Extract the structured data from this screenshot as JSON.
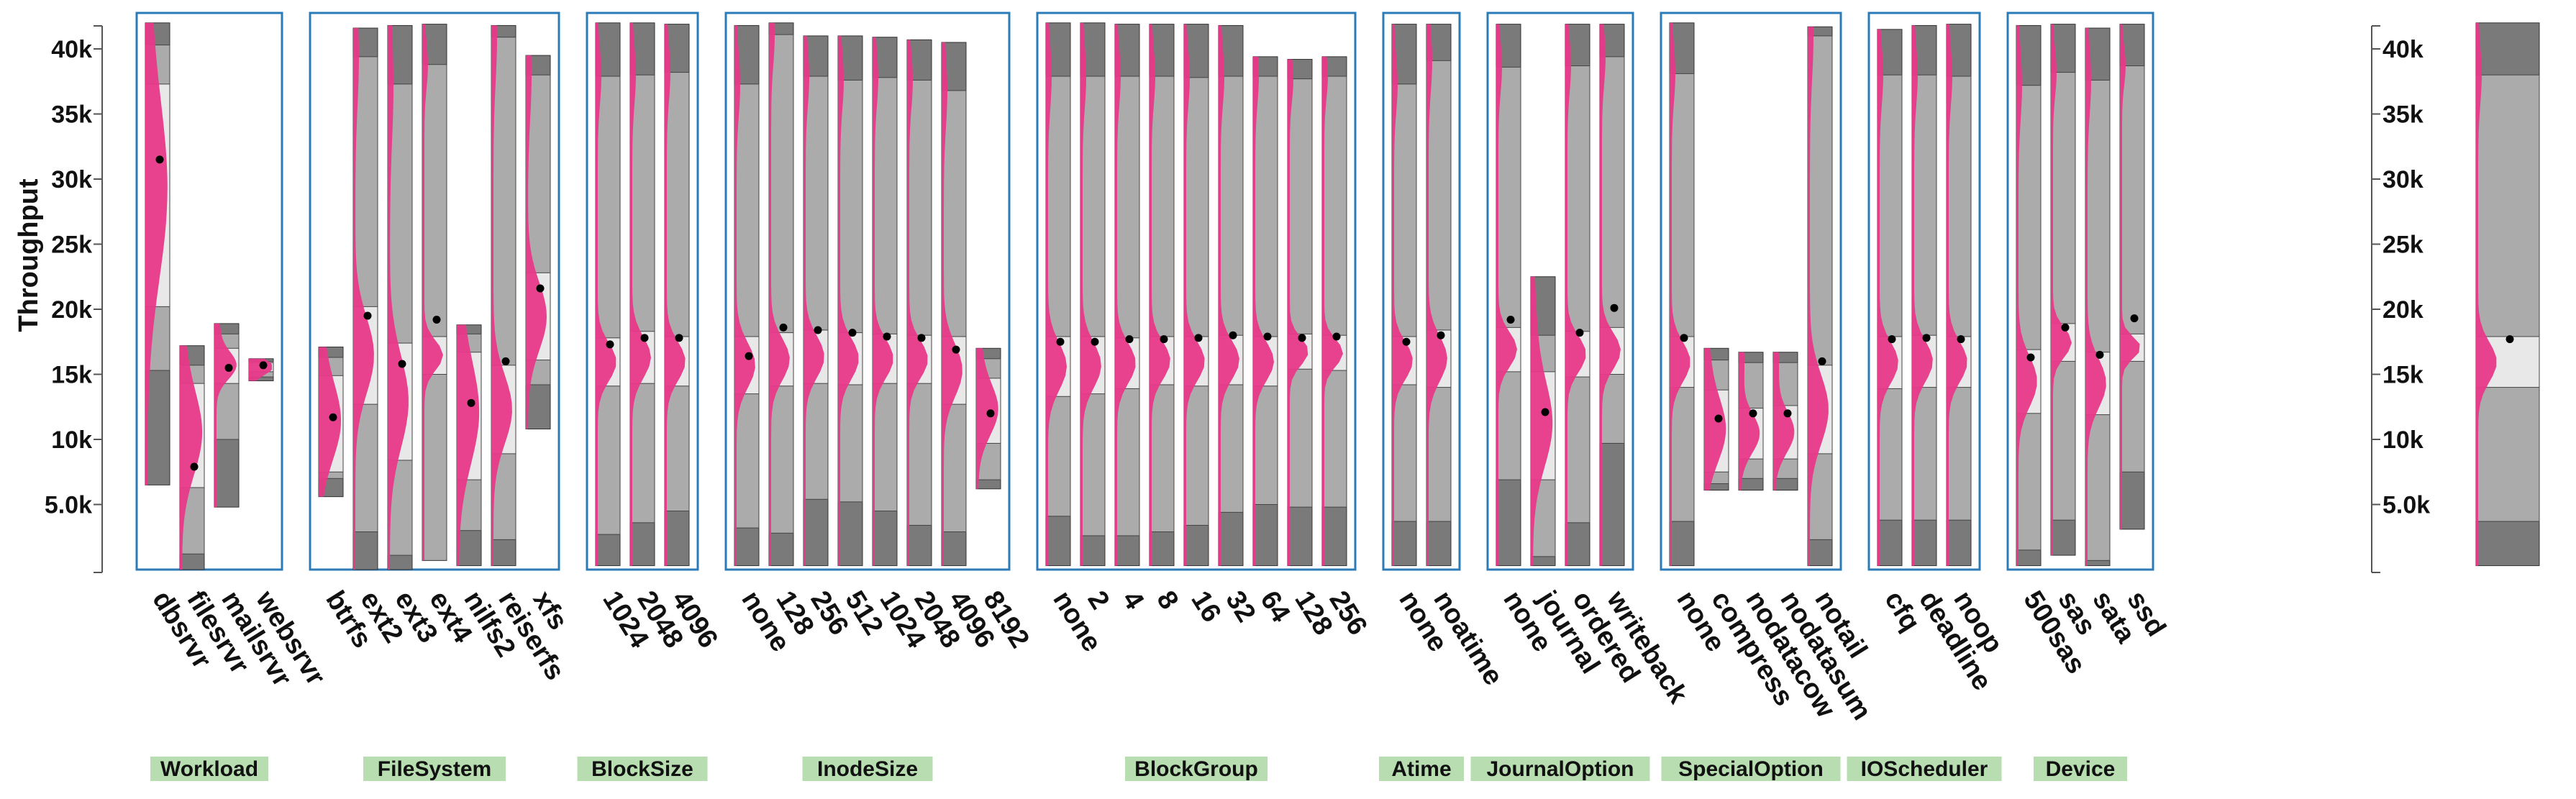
{
  "chart_data": {
    "type": "box",
    "ylabel": "Throughput",
    "y_ticks": [
      "5.0k",
      "10k",
      "15k",
      "20k",
      "25k",
      "30k",
      "35k",
      "40k"
    ],
    "y_tick_values": [
      5000,
      10000,
      15000,
      20000,
      25000,
      30000,
      35000,
      40000
    ],
    "ylim": [
      0,
      42500
    ],
    "distribution_color": "#e8398a",
    "box_colors": {
      "outer": "#7a7a7a",
      "mid": "#ababab",
      "inner": "#e8e8e8"
    },
    "group_border_color": "#2b7bb9",
    "group_label_bg": "#b7ddb0",
    "groups": [
      {
        "name": "Workload",
        "items": [
          {
            "label": "dbsrvr",
            "min": 6500,
            "p10": 15300,
            "q1": 20200,
            "q3": 37300,
            "p90": 40300,
            "max": 42000,
            "mean": 31500
          },
          {
            "label": "filesrvr",
            "min": 0,
            "p10": 1200,
            "q1": 6300,
            "q3": 14300,
            "p90": 15700,
            "max": 17200,
            "mean": 7900
          },
          {
            "label": "mailsrvr",
            "min": 4800,
            "p10": 10000,
            "q1": 14300,
            "q3": 17000,
            "p90": 18100,
            "max": 18900,
            "mean": 15500
          },
          {
            "label": "websrvr",
            "min": 14500,
            "p10": 14800,
            "q1": 15200,
            "q3": 15900,
            "p90": 16000,
            "max": 16200,
            "mean": 15700
          }
        ]
      },
      {
        "name": "FileSystem",
        "items": [
          {
            "label": "btrfs",
            "min": 5600,
            "p10": 7000,
            "q1": 7500,
            "q3": 14900,
            "p90": 16300,
            "max": 17100,
            "mean": 11700
          },
          {
            "label": "ext2",
            "min": 0,
            "p10": 2900,
            "q1": 12700,
            "q3": 20200,
            "p90": 39400,
            "max": 41600,
            "mean": 19500
          },
          {
            "label": "ext3",
            "min": 0,
            "p10": 1100,
            "q1": 8400,
            "q3": 17400,
            "p90": 37300,
            "max": 41800,
            "mean": 15800
          },
          {
            "label": "ext4",
            "min": 700,
            "p10": 700,
            "q1": 15000,
            "q3": 17900,
            "p90": 38800,
            "max": 41900,
            "mean": 19200
          },
          {
            "label": "nilfs2",
            "min": 300,
            "p10": 3000,
            "q1": 6900,
            "q3": 16700,
            "p90": 18100,
            "max": 18800,
            "mean": 12800
          },
          {
            "label": "reiserfs",
            "min": 300,
            "p10": 2300,
            "q1": 8900,
            "q3": 15700,
            "p90": 40900,
            "max": 41800,
            "mean": 16000
          },
          {
            "label": "xfs",
            "min": 10800,
            "p10": 14200,
            "q1": 16100,
            "q3": 22800,
            "p90": 38000,
            "max": 39500,
            "mean": 21600
          }
        ]
      },
      {
        "name": "BlockSize",
        "items": [
          {
            "label": "1024",
            "min": 300,
            "p10": 2700,
            "q1": 14100,
            "q3": 17800,
            "p90": 37900,
            "max": 42000,
            "mean": 17300
          },
          {
            "label": "2048",
            "min": 300,
            "p10": 3600,
            "q1": 14300,
            "q3": 18300,
            "p90": 38000,
            "max": 42000,
            "mean": 17800
          },
          {
            "label": "4096",
            "min": 300,
            "p10": 4500,
            "q1": 14100,
            "q3": 17900,
            "p90": 38200,
            "max": 41900,
            "mean": 17800
          }
        ]
      },
      {
        "name": "InodeSize",
        "items": [
          {
            "label": "none",
            "min": 300,
            "p10": 3200,
            "q1": 13500,
            "q3": 17900,
            "p90": 37300,
            "max": 41800,
            "mean": 16400
          },
          {
            "label": "128",
            "min": 300,
            "p10": 2800,
            "q1": 14100,
            "q3": 18200,
            "p90": 41100,
            "max": 42000,
            "mean": 18600
          },
          {
            "label": "256",
            "min": 300,
            "p10": 5400,
            "q1": 14300,
            "q3": 18400,
            "p90": 37900,
            "max": 41000,
            "mean": 18400
          },
          {
            "label": "512",
            "min": 300,
            "p10": 5200,
            "q1": 14200,
            "q3": 18200,
            "p90": 37600,
            "max": 41000,
            "mean": 18200
          },
          {
            "label": "1024",
            "min": 300,
            "p10": 4500,
            "q1": 14300,
            "q3": 18100,
            "p90": 37800,
            "max": 40900,
            "mean": 17900
          },
          {
            "label": "2048",
            "min": 300,
            "p10": 3400,
            "q1": 14300,
            "q3": 18000,
            "p90": 37600,
            "max": 40700,
            "mean": 17800
          },
          {
            "label": "4096",
            "min": 300,
            "p10": 2900,
            "q1": 12700,
            "q3": 17900,
            "p90": 36800,
            "max": 40500,
            "mean": 16900
          },
          {
            "label": "8192",
            "min": 6200,
            "p10": 6900,
            "q1": 9700,
            "q3": 14700,
            "p90": 16200,
            "max": 17000,
            "mean": 12000
          }
        ]
      },
      {
        "name": "BlockGroup",
        "items": [
          {
            "label": "none",
            "min": 300,
            "p10": 4100,
            "q1": 13300,
            "q3": 17900,
            "p90": 37900,
            "max": 42000,
            "mean": 17500
          },
          {
            "label": "2",
            "min": 300,
            "p10": 2600,
            "q1": 13500,
            "q3": 17900,
            "p90": 37900,
            "max": 42000,
            "mean": 17500
          },
          {
            "label": "4",
            "min": 300,
            "p10": 2600,
            "q1": 13900,
            "q3": 17800,
            "p90": 37900,
            "max": 41900,
            "mean": 17700
          },
          {
            "label": "8",
            "min": 300,
            "p10": 2900,
            "q1": 14200,
            "q3": 17900,
            "p90": 37900,
            "max": 41900,
            "mean": 17700
          },
          {
            "label": "16",
            "min": 300,
            "p10": 3400,
            "q1": 14100,
            "q3": 17900,
            "p90": 37800,
            "max": 41900,
            "mean": 17800
          },
          {
            "label": "32",
            "min": 300,
            "p10": 4400,
            "q1": 14200,
            "q3": 18000,
            "p90": 37900,
            "max": 41800,
            "mean": 18000
          },
          {
            "label": "64",
            "min": 300,
            "p10": 5000,
            "q1": 14100,
            "q3": 17900,
            "p90": 37900,
            "max": 39400,
            "mean": 17900
          },
          {
            "label": "128",
            "min": 300,
            "p10": 4800,
            "q1": 15400,
            "q3": 18100,
            "p90": 37700,
            "max": 39200,
            "mean": 17800
          },
          {
            "label": "256",
            "min": 300,
            "p10": 4800,
            "q1": 15300,
            "q3": 18000,
            "p90": 37900,
            "max": 39400,
            "mean": 17900
          }
        ]
      },
      {
        "name": "Atime",
        "items": [
          {
            "label": "none",
            "min": 300,
            "p10": 3700,
            "q1": 14200,
            "q3": 17900,
            "p90": 37300,
            "max": 41900,
            "mean": 17500
          },
          {
            "label": "noatime",
            "min": 300,
            "p10": 3700,
            "q1": 14000,
            "q3": 18400,
            "p90": 39100,
            "max": 41900,
            "mean": 18000
          }
        ]
      },
      {
        "name": "JournalOption",
        "items": [
          {
            "label": "none",
            "min": 300,
            "p10": 6900,
            "q1": 15200,
            "q3": 18600,
            "p90": 38600,
            "max": 41900,
            "mean": 19200
          },
          {
            "label": "journal",
            "min": 300,
            "p10": 1000,
            "q1": 6900,
            "q3": 15200,
            "p90": 18000,
            "max": 22500,
            "mean": 12100
          },
          {
            "label": "ordered",
            "min": 300,
            "p10": 3600,
            "q1": 14800,
            "q3": 18300,
            "p90": 38700,
            "max": 41900,
            "mean": 18200
          },
          {
            "label": "writeback",
            "min": 300,
            "p10": 9700,
            "q1": 15000,
            "q3": 18600,
            "p90": 39400,
            "max": 41900,
            "mean": 20100
          }
        ]
      },
      {
        "name": "SpecialOption",
        "items": [
          {
            "label": "none",
            "min": 300,
            "p10": 3700,
            "q1": 14000,
            "q3": 17900,
            "p90": 38100,
            "max": 42000,
            "mean": 17800
          },
          {
            "label": "compress",
            "min": 6100,
            "p10": 6600,
            "q1": 7500,
            "q3": 13800,
            "p90": 16100,
            "max": 17000,
            "mean": 11600
          },
          {
            "label": "nodatacow",
            "min": 6100,
            "p10": 7000,
            "q1": 8500,
            "q3": 12400,
            "p90": 15900,
            "max": 16700,
            "mean": 12000
          },
          {
            "label": "nodatasum",
            "min": 6100,
            "p10": 7000,
            "q1": 8500,
            "q3": 12600,
            "p90": 15900,
            "max": 16700,
            "mean": 12000
          },
          {
            "label": "notail",
            "min": 300,
            "p10": 2300,
            "q1": 8900,
            "q3": 15700,
            "p90": 41000,
            "max": 41700,
            "mean": 16000
          }
        ]
      },
      {
        "name": "IOScheduler",
        "items": [
          {
            "label": "cfq",
            "min": 300,
            "p10": 3800,
            "q1": 13900,
            "q3": 17900,
            "p90": 38000,
            "max": 41500,
            "mean": 17700
          },
          {
            "label": "deadline",
            "min": 300,
            "p10": 3800,
            "q1": 14000,
            "q3": 18000,
            "p90": 38000,
            "max": 41800,
            "mean": 17800
          },
          {
            "label": "noop",
            "min": 300,
            "p10": 3800,
            "q1": 14000,
            "q3": 17900,
            "p90": 37900,
            "max": 41900,
            "mean": 17700
          }
        ]
      },
      {
        "name": "Device",
        "items": [
          {
            "label": "500sas",
            "min": 300,
            "p10": 1500,
            "q1": 12000,
            "q3": 16900,
            "p90": 37200,
            "max": 41800,
            "mean": 16300
          },
          {
            "label": "sas",
            "min": 1100,
            "p10": 3800,
            "q1": 16000,
            "q3": 18900,
            "p90": 38200,
            "max": 41900,
            "mean": 18600
          },
          {
            "label": "sata",
            "min": 300,
            "p10": 700,
            "q1": 11900,
            "q3": 16700,
            "p90": 37600,
            "max": 41600,
            "mean": 16500
          },
          {
            "label": "ssd",
            "min": 3100,
            "p10": 7500,
            "q1": 16000,
            "q3": 18100,
            "p90": 38700,
            "max": 41900,
            "mean": 19300
          }
        ]
      }
    ],
    "overall": {
      "min": 300,
      "p10": 3700,
      "q1": 14000,
      "q3": 17900,
      "p90": 38000,
      "max": 42000,
      "mean": 17700
    }
  }
}
